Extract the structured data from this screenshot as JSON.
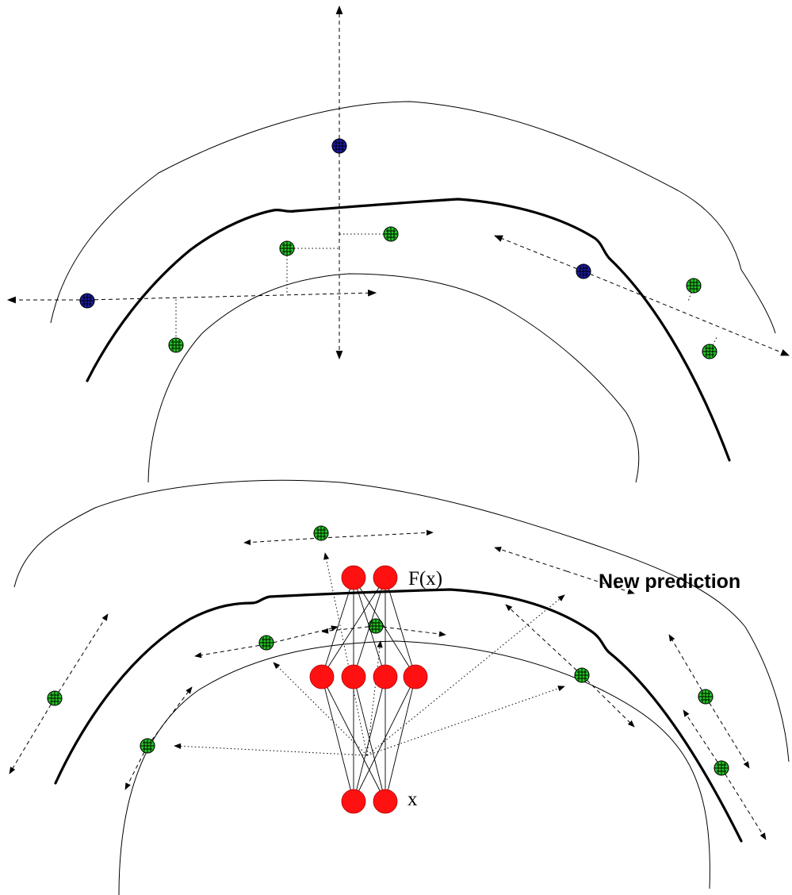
{
  "labels": {
    "new_prediction": "New prediction",
    "output": "F(x)",
    "input": "x"
  },
  "colors": {
    "support_point": "#1a1aa8",
    "data_point": "#22c322",
    "neuron": "#ff1111",
    "line": "#000000"
  },
  "panels": [
    "top-panel-manifold-with-local-directions",
    "bottom-panel-neural-network-predicting-tangent-directions"
  ],
  "network": {
    "layers": [
      2,
      4,
      2
    ]
  }
}
